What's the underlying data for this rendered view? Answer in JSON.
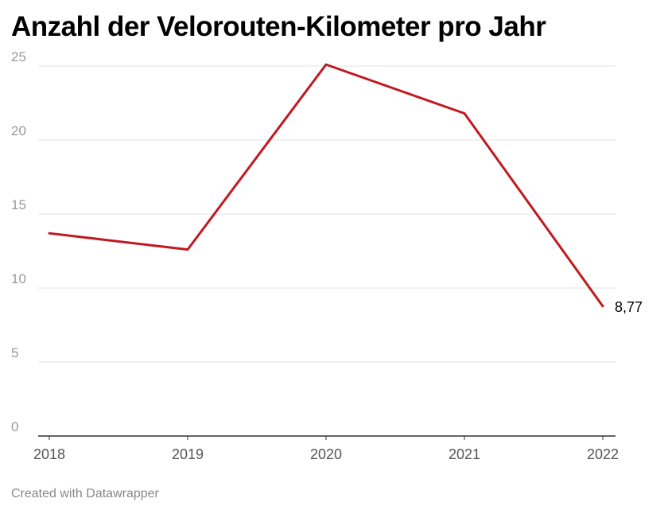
{
  "title": "Anzahl der Velorouten-Kilometer pro Jahr",
  "footer": "Created with Datawrapper",
  "colors": {
    "line": "#c0191f",
    "grid": "#e3e3e3",
    "axis": "#333333",
    "tick_label": "#999999",
    "x_tick_label": "#555555"
  },
  "chart_data": {
    "type": "line",
    "title": "Anzahl der Velorouten-Kilometer pro Jahr",
    "categories": [
      "2018",
      "2019",
      "2020",
      "2021",
      "2022"
    ],
    "series": [
      {
        "values": [
          13.7,
          12.6,
          25.1,
          21.8,
          8.77
        ]
      }
    ],
    "end_label": "8,77",
    "ylim": [
      0,
      25
    ],
    "yticks": [
      0,
      5,
      10,
      15,
      20,
      25
    ],
    "grid": true,
    "legend": "none"
  }
}
